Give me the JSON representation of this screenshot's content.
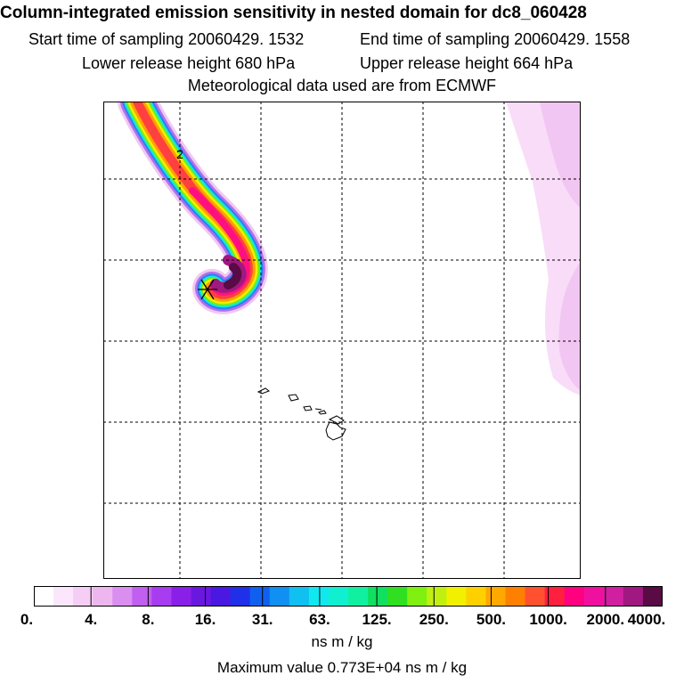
{
  "header": {
    "title": "Column-integrated emission sensitivity in nested domain for dc8_060428",
    "start_time": "Start time of sampling 20060429.  1532",
    "end_time": "End time of sampling 20060429.  1558",
    "lower_release": "Lower release height  680 hPa",
    "upper_release": "Upper release height  664 hPa",
    "met_data": "Meteorological data used are from ECMWF"
  },
  "map": {
    "contour_label": "2",
    "grid_lines_x": 5,
    "grid_lines_y": 5
  },
  "colorbar": {
    "colors": [
      "#ffffff",
      "#fbe6fb",
      "#f5cdf5",
      "#eeb6ee",
      "#d98ef0",
      "#c05ff0",
      "#a83cf0",
      "#8a20e8",
      "#6a18e0",
      "#4a18e0",
      "#2030e8",
      "#1060f0",
      "#1090f0",
      "#10c0f0",
      "#10e8f0",
      "#10f0d0",
      "#10f0a0",
      "#10e060",
      "#30e020",
      "#80f010",
      "#c0f010",
      "#f0f000",
      "#ffd000",
      "#ffa800",
      "#ff8000",
      "#ff5030",
      "#ff2040",
      "#ff0080",
      "#f010a0",
      "#d020a0",
      "#a01880",
      "#5a0a45"
    ],
    "tick_labels": [
      "0.",
      "4.",
      "8.",
      "16.",
      "31.",
      "63.",
      "125.",
      "250.",
      "500.",
      "1000.",
      "2000.",
      "4000."
    ],
    "units": "ns m / kg"
  },
  "footer": {
    "max_value": "Maximum value  0.773E+04 ns m / kg"
  }
}
